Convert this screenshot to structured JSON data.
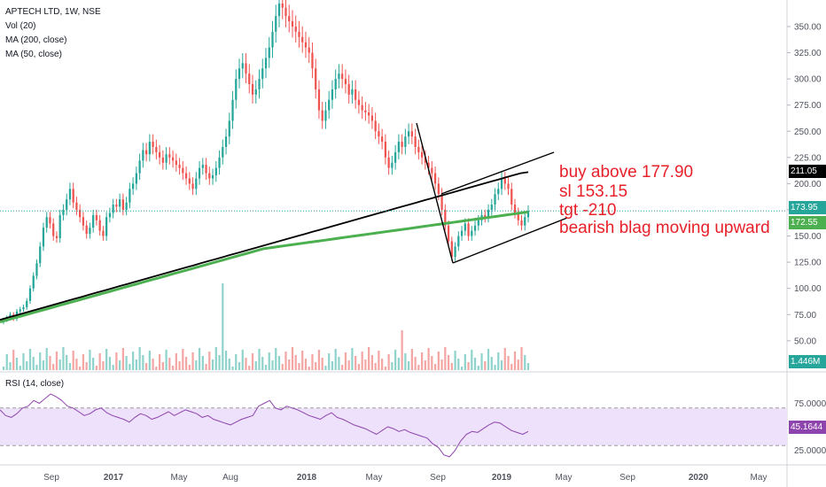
{
  "header": {
    "symbol_line": "APTECH LTD, 1W, NSE",
    "indicators": [
      "Vol (20)",
      "MA (200, close)",
      "MA (50, close)"
    ]
  },
  "annotations": [
    "buy above 177.90",
    "sl  153.15",
    "tgt -210",
    "bearish blag moving upward"
  ],
  "price_tags": {
    "ma50": "211.05",
    "last": "173.95",
    "ma200": "172.55",
    "volume": "1.446M",
    "rsi": "45.1644"
  },
  "rsi_pane": {
    "label": "RSI (14, close)",
    "ticks": [
      "75.0000",
      "50.0000",
      "25.0000"
    ]
  },
  "colors": {
    "up": "#26a69a",
    "down": "#ef5350",
    "ma200": "#4caf50",
    "ma50": "#000000",
    "rsi_line": "#8e44ad",
    "rsi_band": "#ede1fb",
    "annotation": "#e8202a"
  },
  "chart_data": [
    {
      "type": "candlestick",
      "title": "APTECH LTD, 1W, NSE",
      "price_axis": {
        "range": [
          30,
          375
        ],
        "ticks": [
          "350.00",
          "325.00",
          "300.00",
          "275.00",
          "250.00",
          "225.00",
          "200.00",
          "175.00",
          "150.00",
          "125.00",
          "100.00",
          "75.00",
          "50.00"
        ]
      },
      "x_axis_labels": [
        "Sep",
        "2017",
        "May",
        "Aug",
        "2018",
        "May",
        "Sep",
        "2019",
        "May",
        "Sep",
        "2020",
        "May"
      ],
      "close_series": [
        70,
        72,
        75,
        71,
        78,
        80,
        82,
        88,
        100,
        112,
        124,
        140,
        158,
        168,
        162,
        150,
        148,
        170,
        175,
        185,
        195,
        182,
        175,
        168,
        160,
        152,
        158,
        170,
        165,
        155,
        150,
        168,
        172,
        180,
        178,
        185,
        175,
        182,
        195,
        200,
        210,
        222,
        232,
        228,
        240,
        235,
        230,
        225,
        220,
        228,
        225,
        222,
        218,
        215,
        210,
        205,
        200,
        195,
        205,
        215,
        218,
        210,
        205,
        208,
        215,
        225,
        235,
        245,
        260,
        280,
        300,
        310,
        315,
        305,
        295,
        285,
        290,
        300,
        310,
        320,
        330,
        345,
        360,
        372,
        368,
        360,
        355,
        350,
        345,
        340,
        335,
        330,
        325,
        310,
        290,
        270,
        260,
        270,
        280,
        290,
        300,
        305,
        300,
        295,
        285,
        290,
        280,
        275,
        270,
        268,
        265,
        260,
        250,
        245,
        240,
        225,
        215,
        220,
        230,
        240,
        235,
        245,
        250,
        245,
        235,
        230,
        225,
        220,
        215,
        210,
        200,
        190,
        175,
        160,
        145,
        130,
        140,
        150,
        155,
        162,
        150,
        155,
        160,
        165,
        170,
        168,
        175,
        180,
        190,
        195,
        205,
        200,
        195,
        180,
        172,
        165,
        160,
        168,
        174
      ],
      "ma200_series": [
        68,
        70,
        72,
        74,
        76,
        78,
        80,
        82,
        84,
        86,
        88,
        90,
        92,
        94,
        96,
        98,
        100,
        102,
        104,
        106,
        108,
        110,
        112,
        114,
        116,
        118,
        120,
        122,
        124,
        126,
        128,
        130,
        132,
        134,
        136,
        138,
        139,
        140,
        141,
        142,
        143,
        144,
        145,
        146,
        147,
        148,
        149,
        150,
        151,
        152,
        153,
        154,
        155,
        156,
        157,
        158,
        159,
        160,
        161,
        162,
        163,
        164,
        165,
        166,
        167,
        168,
        169,
        170,
        171,
        172,
        173
      ],
      "ma50_series": [
        70,
        72,
        74,
        76,
        78,
        80,
        82,
        84,
        86,
        88,
        90,
        92,
        94,
        96,
        98,
        100,
        102,
        104,
        106,
        108,
        110,
        112,
        114,
        116,
        118,
        120,
        122,
        124,
        126,
        128,
        130,
        132,
        134,
        136,
        138,
        140,
        142,
        144,
        146,
        148,
        150,
        152,
        154,
        156,
        158,
        160,
        162,
        164,
        166,
        168,
        170,
        172,
        174,
        176,
        178,
        180,
        182,
        184,
        186,
        188,
        190,
        192,
        194,
        196,
        198,
        200,
        202,
        204,
        206,
        208,
        210,
        211
      ],
      "volume_last": "1.446M",
      "last_price": 173.95,
      "ma200_last": 172.55,
      "ma50_last": 211.05,
      "trendlines": [
        {
          "name": "pole",
          "from": [
            0,
            258
          ],
          "to": [
            0,
            121
          ]
        },
        {
          "name": "channel-upper",
          "from": [
            0,
            190
          ],
          "to": [
            0,
            228
          ]
        },
        {
          "name": "channel-lower",
          "from": [
            0,
            121
          ],
          "to": [
            0,
            160
          ]
        }
      ]
    },
    {
      "type": "line",
      "title": "RSI (14, close)",
      "ylim": [
        10,
        90
      ],
      "band": [
        30,
        70
      ],
      "last": 45.1644,
      "values": [
        68,
        62,
        60,
        64,
        70,
        72,
        78,
        75,
        80,
        85,
        82,
        78,
        72,
        70,
        66,
        62,
        64,
        68,
        70,
        65,
        62,
        60,
        58,
        55,
        60,
        64,
        62,
        58,
        60,
        63,
        66,
        62,
        65,
        68,
        66,
        64,
        60,
        62,
        58,
        56,
        54,
        52,
        55,
        58,
        60,
        62,
        72,
        75,
        78,
        70,
        68,
        72,
        70,
        68,
        65,
        62,
        60,
        58,
        62,
        65,
        60,
        58,
        55,
        52,
        50,
        48,
        45,
        42,
        46,
        50,
        48,
        45,
        47,
        44,
        42,
        40,
        38,
        32,
        28,
        20,
        18,
        25,
        35,
        42,
        45,
        44,
        48,
        52,
        55,
        54,
        50,
        46,
        44,
        42,
        45
      ]
    }
  ]
}
